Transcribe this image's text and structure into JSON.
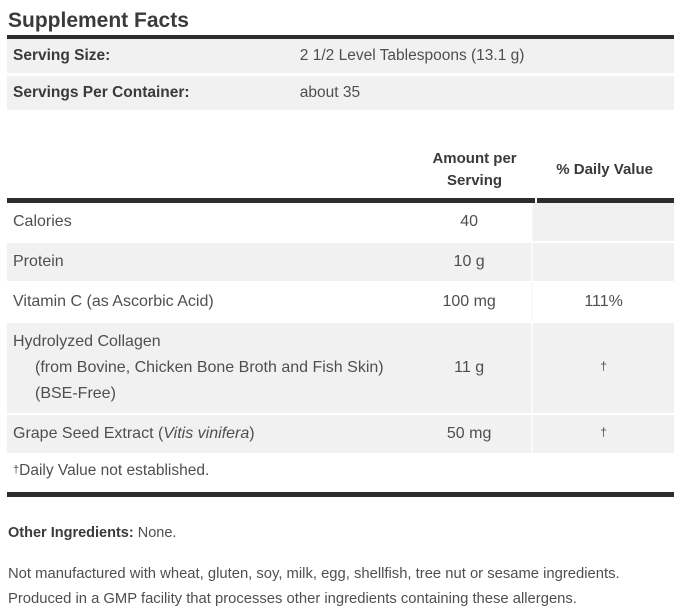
{
  "title": "Supplement Facts",
  "serving_info": [
    {
      "label": "Serving Size:",
      "value": "2 1/2 Level Tablespoons (13.1 g)"
    },
    {
      "label": "Servings Per Container:",
      "value": "about 35"
    }
  ],
  "columns": {
    "amount_header_line1": "Amount per",
    "amount_header_line2": "Serving",
    "dv_header": "% Daily Value"
  },
  "nutrients": [
    {
      "name": "Calories",
      "amount": "40",
      "dv": "",
      "row_shaded": false,
      "dv_shaded": true
    },
    {
      "name": "Protein",
      "amount": "10 g",
      "dv": "",
      "row_shaded": true,
      "dv_shaded": true
    },
    {
      "name": "Vitamin C (as Ascorbic Acid)",
      "amount": "100 mg",
      "dv": "111%",
      "row_shaded": false,
      "dv_shaded": false
    },
    {
      "name": "Hydrolyzed Collagen",
      "name_sub": "(from Bovine, Chicken Bone Broth and Fish Skin) (BSE-Free)",
      "amount": "11 g",
      "dv": "†",
      "dv_is_dagger": true,
      "row_shaded": true,
      "dv_shaded": true
    },
    {
      "name": "Grape Seed Extract (",
      "name_italic": "Vitis vinifera",
      "name_suffix": ")",
      "amount": "50 mg",
      "dv": "†",
      "dv_is_dagger": true,
      "row_shaded": true,
      "dv_shaded": true
    }
  ],
  "footnote": {
    "dagger": "†",
    "text": "Daily Value not established."
  },
  "other_ingredients": {
    "label": "Other Ingredients:",
    "value": "None."
  },
  "allergen_statement": "Not manufactured with wheat, gluten, soy, milk, egg, shellfish, tree nut or sesame ingredients. Produced in a GMP facility that processes other ingredients containing these allergens.",
  "colors": {
    "bar": "#2d2d2d",
    "row_shaded": "#f1f1f1",
    "heading_text": "#3a3a3a",
    "body_text": "#4f4f4f"
  }
}
